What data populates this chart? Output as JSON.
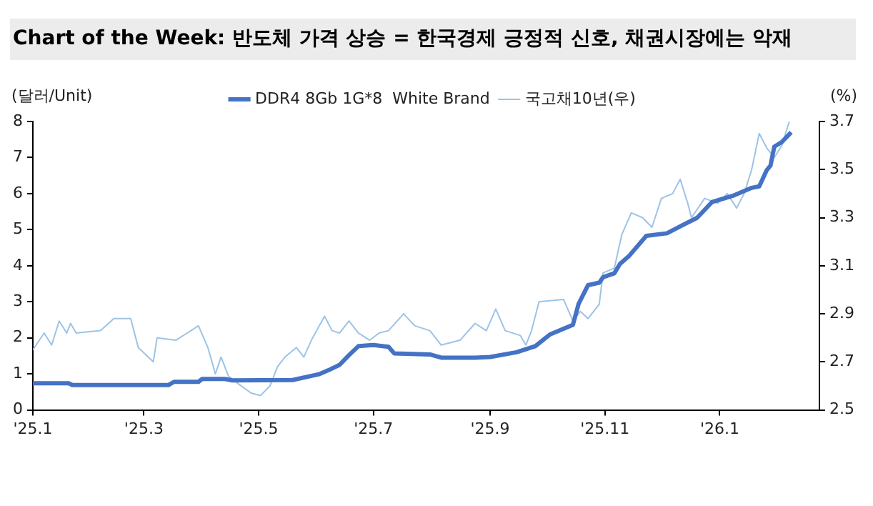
{
  "chart_data": {
    "type": "line",
    "title": "Chart of the Week: 반도체 가격 상승 = 한국경제 긍정적 신호, 채권시장에는 악재",
    "ylabel": "(달러/Unit)",
    "y2label": "(%)",
    "xlim": [
      "2025-01-01",
      "2026-02-23"
    ],
    "xticks": [
      {
        "value": "2025-01-01",
        "label": "'25.1"
      },
      {
        "value": "2025-03-01",
        "label": "'25.3"
      },
      {
        "value": "2025-05-01",
        "label": "'25.5"
      },
      {
        "value": "2025-07-01",
        "label": "'25.7"
      },
      {
        "value": "2025-09-01",
        "label": "'25.9"
      },
      {
        "value": "2025-11-01",
        "label": "'25.11"
      },
      {
        "value": "2026-01-01",
        "label": "'26.1"
      }
    ],
    "ylim": [
      0,
      8
    ],
    "yticks": [
      0,
      1,
      2,
      3,
      4,
      5,
      6,
      7,
      8
    ],
    "y2lim": [
      2.5,
      3.7
    ],
    "y2ticks": [
      2.5,
      2.7,
      2.9,
      3.1,
      3.3,
      3.5,
      3.7
    ],
    "grid": false,
    "legend": "top",
    "marker": "none",
    "line_style": "solid",
    "series": [
      {
        "name": "DDR4 8Gb 1G*8  White Brand",
        "color": "#4472c4",
        "x": [
          "2025-01-01",
          "2025-01-20",
          "2025-01-22",
          "2025-03-14",
          "2025-03-17",
          "2025-03-30",
          "2025-04-01",
          "2025-04-13",
          "2025-04-17",
          "2025-05-19",
          "2025-06-02",
          "2025-06-07",
          "2025-06-13",
          "2025-06-18",
          "2025-06-23",
          "2025-07-01",
          "2025-07-09",
          "2025-07-12",
          "2025-07-31",
          "2025-08-06",
          "2025-08-24",
          "2025-09-01",
          "2025-09-15",
          "2025-09-25",
          "2025-10-03",
          "2025-10-15",
          "2025-10-18",
          "2025-10-23",
          "2025-10-29",
          "2025-10-31",
          "2025-11-06",
          "2025-11-09",
          "2025-11-14",
          "2025-11-23",
          "2025-12-04",
          "2025-12-12",
          "2025-12-20",
          "2025-12-28",
          "2026-01-08",
          "2026-01-18",
          "2026-01-22",
          "2026-01-26",
          "2026-01-28",
          "2026-01-30",
          "2026-02-03",
          "2026-02-08"
        ],
        "values": [
          0.74,
          0.74,
          0.69,
          0.69,
          0.78,
          0.78,
          0.86,
          0.86,
          0.82,
          0.83,
          0.99,
          1.1,
          1.25,
          1.52,
          1.77,
          1.8,
          1.75,
          1.57,
          1.54,
          1.45,
          1.45,
          1.47,
          1.6,
          1.77,
          2.1,
          2.36,
          2.94,
          3.46,
          3.53,
          3.68,
          3.79,
          4.05,
          4.28,
          4.83,
          4.9,
          5.12,
          5.33,
          5.77,
          5.94,
          6.16,
          6.2,
          6.65,
          6.78,
          7.3,
          7.43,
          7.7
        ]
      },
      {
        "name": "국고채10년(우)",
        "color": "#9dc3e6",
        "axis": "y2",
        "x": [
          "2025-01-01",
          "2025-01-07",
          "2025-01-11",
          "2025-01-15",
          "2025-01-19",
          "2025-01-21",
          "2025-01-24",
          "2025-02-06",
          "2025-02-13",
          "2025-02-22",
          "2025-02-26",
          "2025-03-06",
          "2025-03-08",
          "2025-03-18",
          "2025-03-30",
          "2025-04-04",
          "2025-04-08",
          "2025-04-11",
          "2025-04-15",
          "2025-04-20",
          "2025-04-27",
          "2025-05-02",
          "2025-05-07",
          "2025-05-11",
          "2025-05-15",
          "2025-05-21",
          "2025-05-25",
          "2025-05-29",
          "2025-06-05",
          "2025-06-09",
          "2025-06-13",
          "2025-06-18",
          "2025-06-23",
          "2025-06-29",
          "2025-07-04",
          "2025-07-09",
          "2025-07-17",
          "2025-07-23",
          "2025-07-31",
          "2025-08-06",
          "2025-08-16",
          "2025-08-24",
          "2025-08-30",
          "2025-09-04",
          "2025-09-09",
          "2025-09-17",
          "2025-09-20",
          "2025-09-23",
          "2025-09-27",
          "2025-10-10",
          "2025-10-15",
          "2025-10-19",
          "2025-10-23",
          "2025-10-29",
          "2025-10-31",
          "2025-11-06",
          "2025-11-10",
          "2025-11-15",
          "2025-11-21",
          "2025-11-26",
          "2025-12-01",
          "2025-12-07",
          "2025-12-11",
          "2025-12-15",
          "2025-12-17",
          "2025-12-24",
          "2025-12-31",
          "2026-01-05",
          "2026-01-10",
          "2026-01-14",
          "2026-01-18",
          "2026-01-22",
          "2026-01-26",
          "2026-01-30",
          "2026-02-03",
          "2026-02-07"
        ],
        "values": [
          2.75,
          2.82,
          2.77,
          2.87,
          2.82,
          2.86,
          2.82,
          2.83,
          2.88,
          2.88,
          2.76,
          2.7,
          2.8,
          2.79,
          2.85,
          2.76,
          2.65,
          2.72,
          2.64,
          2.61,
          2.57,
          2.56,
          2.6,
          2.68,
          2.72,
          2.76,
          2.72,
          2.79,
          2.89,
          2.83,
          2.82,
          2.87,
          2.82,
          2.79,
          2.82,
          2.83,
          2.9,
          2.85,
          2.83,
          2.77,
          2.79,
          2.86,
          2.83,
          2.92,
          2.83,
          2.81,
          2.77,
          2.83,
          2.95,
          2.96,
          2.87,
          2.91,
          2.88,
          2.94,
          3.07,
          3.09,
          3.23,
          3.32,
          3.3,
          3.26,
          3.38,
          3.4,
          3.46,
          3.36,
          3.3,
          3.38,
          3.36,
          3.4,
          3.34,
          3.4,
          3.5,
          3.65,
          3.59,
          3.55,
          3.6,
          3.7
        ]
      }
    ]
  }
}
